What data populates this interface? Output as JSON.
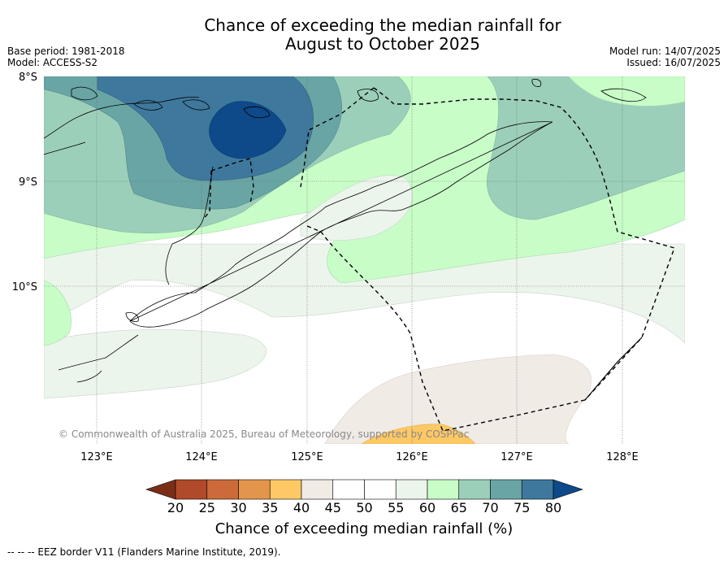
{
  "title": {
    "line1": "Chance of exceeding the median rainfall for",
    "line2": "August to October 2025"
  },
  "meta_left": {
    "base_period": "Base period: 1981-2018",
    "model": "Model: ACCESS-S2"
  },
  "meta_right": {
    "model_run": "Model run: 14/07/2025",
    "issued": "Issued: 16/07/2025"
  },
  "map": {
    "lat_labels": [
      "8°S",
      "9°S",
      "10°S"
    ],
    "lon_labels": [
      "123°E",
      "124°E",
      "125°E",
      "126°E",
      "127°E",
      "128°E"
    ],
    "copyright": "© Commonwealth of Australia 2025, Bureau of Meteorology, supported by COSPPac"
  },
  "colorbar": {
    "ticks": [
      "20",
      "25",
      "30",
      "35",
      "40",
      "45",
      "50",
      "55",
      "60",
      "65",
      "70",
      "75",
      "80"
    ],
    "colors": [
      "#7a2e17",
      "#b04a2a",
      "#cc6a3a",
      "#e3964b",
      "#fec865",
      "#f1ebe6",
      "#ffffff",
      "#ffffff",
      "#ecf5ec",
      "#c8fdc8",
      "#9ccfba",
      "#6aa5a5",
      "#3f789d",
      "#0e4989"
    ],
    "label": "Chance of exceeding median rainfall (%)"
  },
  "footnote": "--  --  -- EEZ border V11 (Flanders Marine Institute, 2019)."
}
